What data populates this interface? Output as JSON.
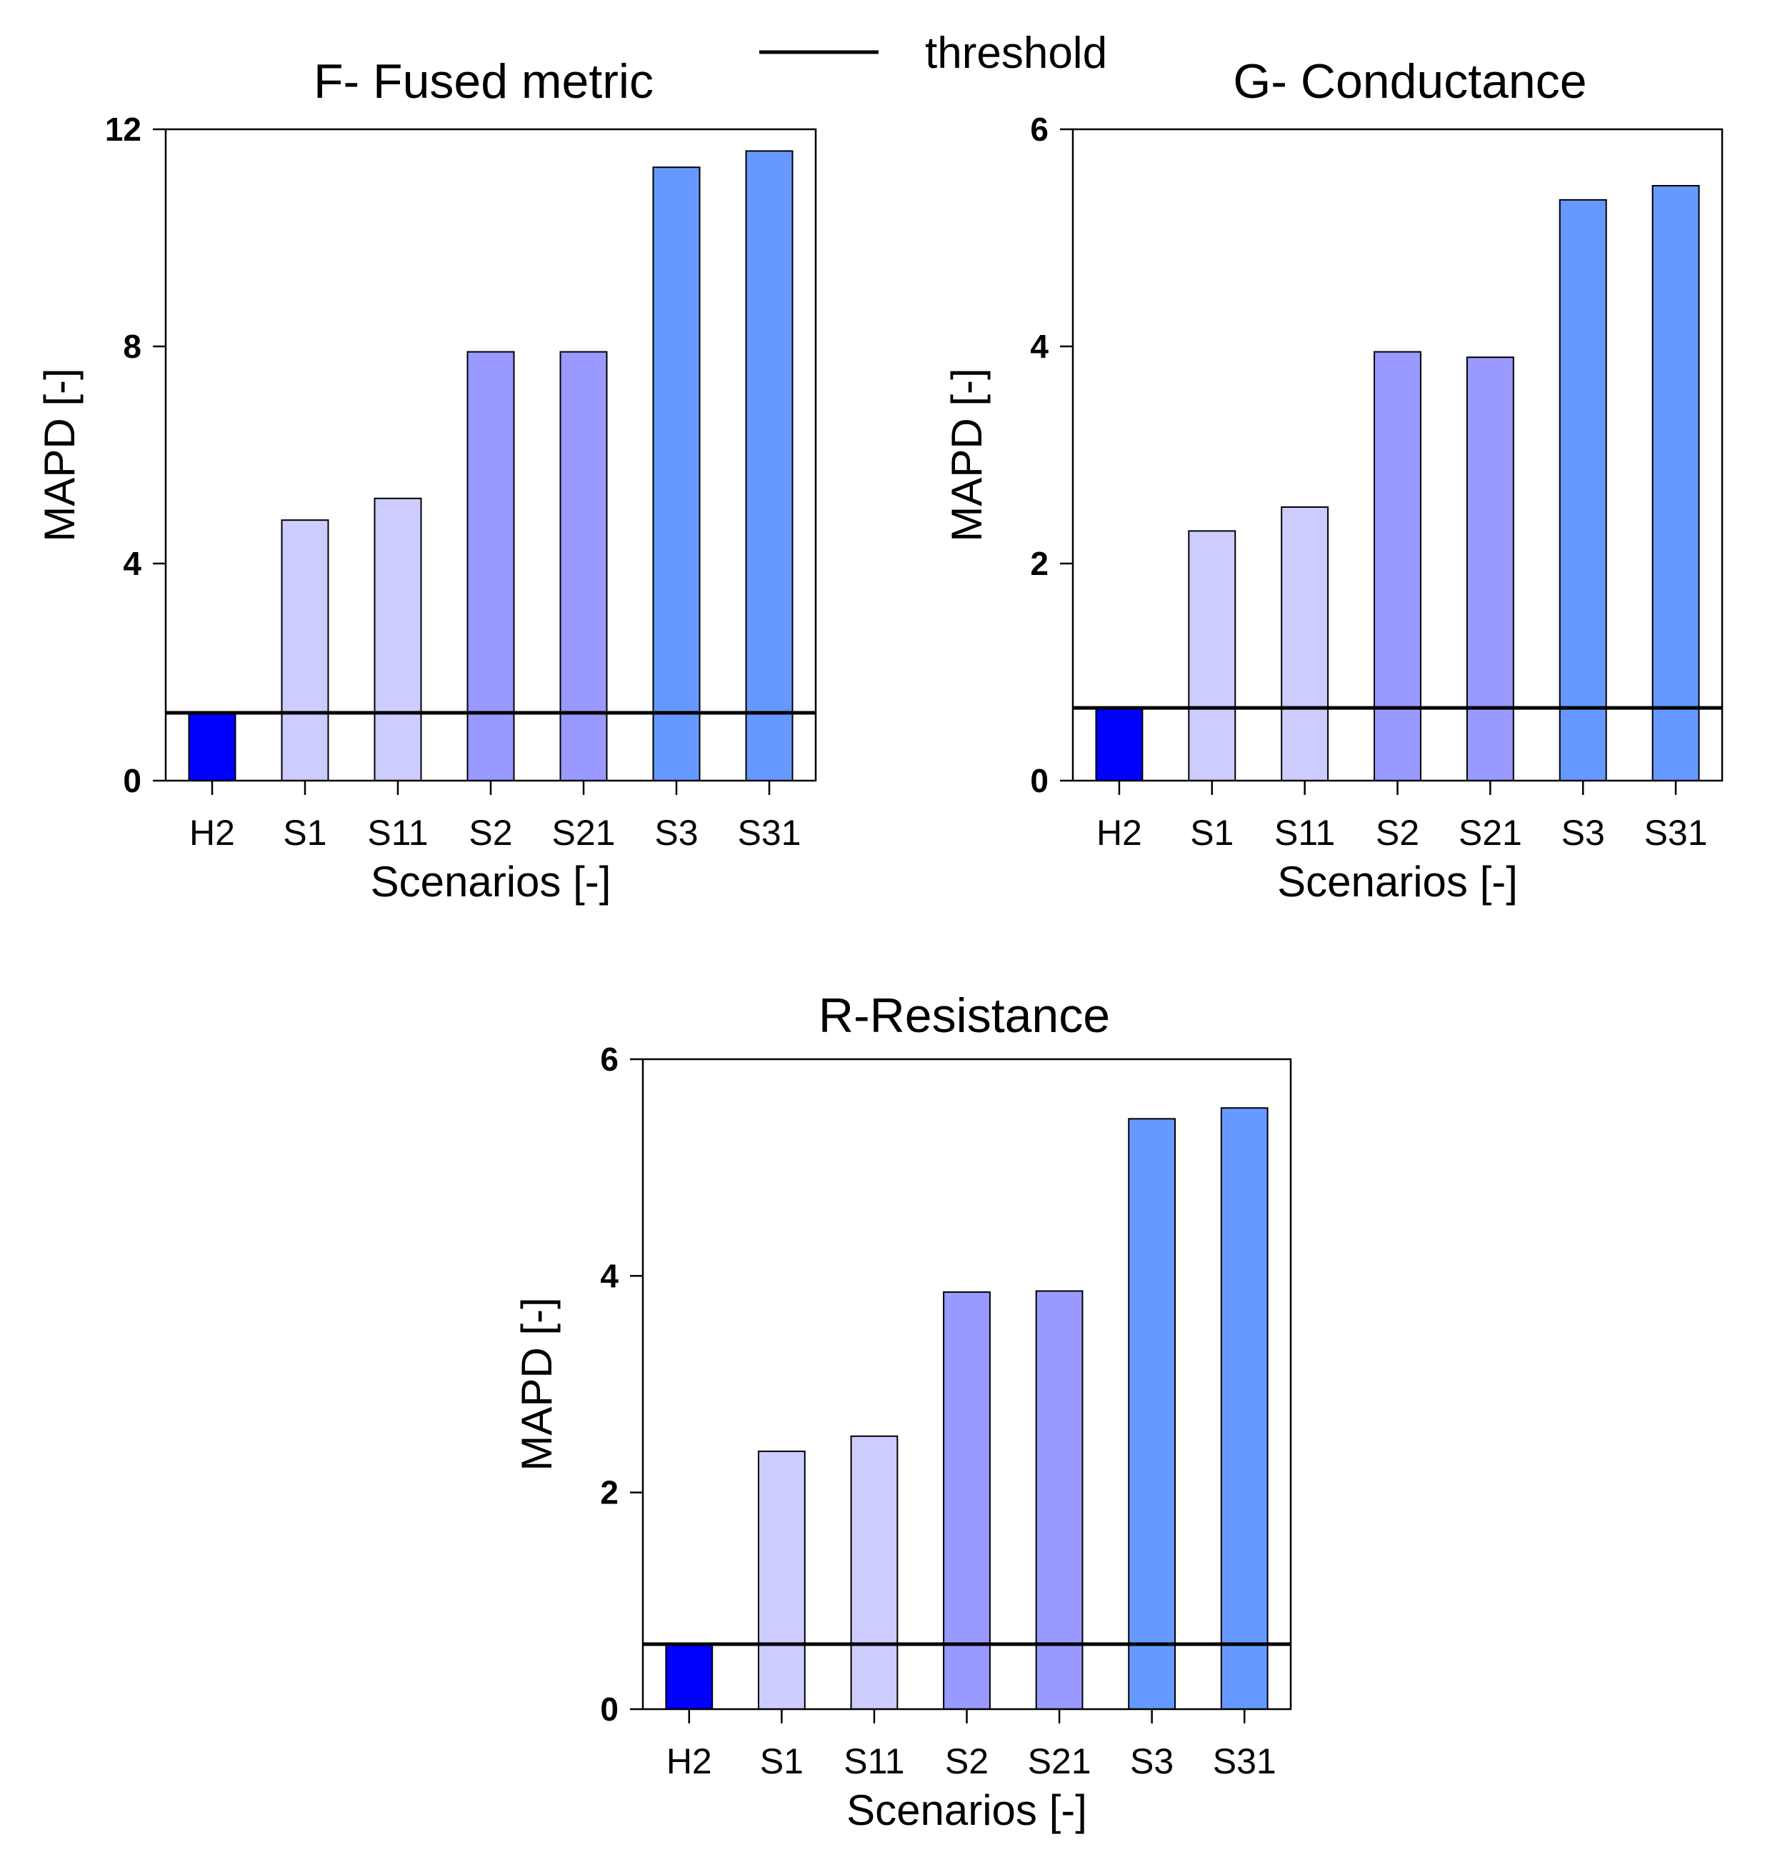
{
  "legend": {
    "label": "threshold"
  },
  "colors": {
    "H2": "#0000ff",
    "group1": "#ccccff",
    "group2": "#9999ff",
    "group3": "#6699ff",
    "threshold": "#000000"
  },
  "chart_data": [
    {
      "type": "bar",
      "title": "F- Fused metric",
      "xlabel": "Scenarios [-]",
      "ylabel": "MAPD [-]",
      "categories": [
        "H2",
        "S1",
        "S11",
        "S2",
        "S21",
        "S3",
        "S31"
      ],
      "values": [
        1.25,
        4.8,
        5.2,
        7.9,
        7.9,
        11.3,
        11.6
      ],
      "ylim": [
        0,
        12
      ],
      "yticks": [
        0,
        4,
        8,
        12
      ],
      "threshold": 1.25
    },
    {
      "type": "bar",
      "title": "G- Conductance",
      "xlabel": "Scenarios [-]",
      "ylabel": "MAPD [-]",
      "categories": [
        "H2",
        "S1",
        "S11",
        "S2",
        "S21",
        "S3",
        "S31"
      ],
      "values": [
        0.67,
        2.3,
        2.52,
        3.95,
        3.9,
        5.35,
        5.48
      ],
      "ylim": [
        0,
        6
      ],
      "yticks": [
        0,
        2,
        4,
        6
      ],
      "threshold": 0.67
    },
    {
      "type": "bar",
      "title": "R-Resistance",
      "xlabel": "Scenarios [-]",
      "ylabel": "MAPD [-]",
      "categories": [
        "H2",
        "S1",
        "S11",
        "S2",
        "S21",
        "S3",
        "S31"
      ],
      "values": [
        0.6,
        2.38,
        2.52,
        3.85,
        3.86,
        5.45,
        5.55
      ],
      "ylim": [
        0,
        6
      ],
      "yticks": [
        0,
        2,
        4,
        6
      ],
      "threshold": 0.6
    }
  ]
}
